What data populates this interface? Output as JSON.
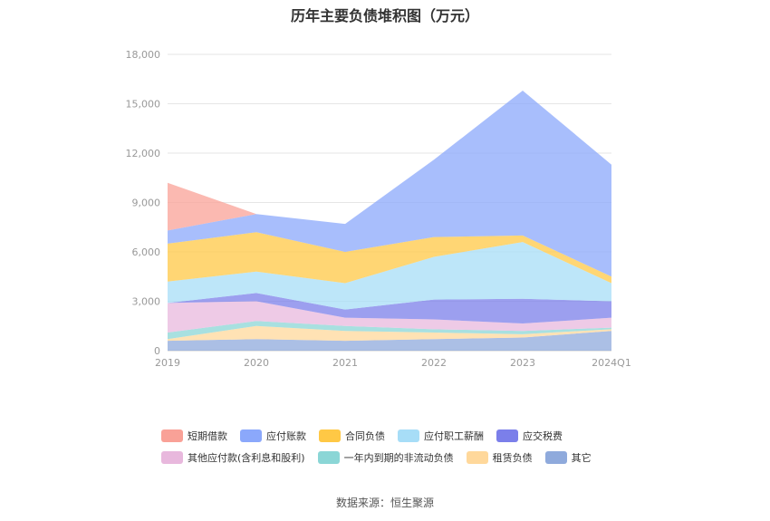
{
  "chart_data": {
    "type": "area",
    "stacked": true,
    "title": "历年主要负债堆积图（万元）",
    "x": [
      "2019",
      "2020",
      "2021",
      "2022",
      "2023",
      "2024Q1"
    ],
    "ylim": [
      0,
      18000
    ],
    "yticks": [
      0,
      3000,
      6000,
      9000,
      12000,
      15000,
      18000
    ],
    "ytick_labels": [
      "0",
      "3,000",
      "6,000",
      "9,000",
      "12,000",
      "15,000",
      "18,000"
    ],
    "grid": true,
    "legend_position": "bottom",
    "series": [
      {
        "name": "其它",
        "color": "#8FAADC",
        "values": [
          600,
          700,
          600,
          700,
          800,
          1200
        ]
      },
      {
        "name": "租赁负债",
        "color": "#FFD89B",
        "values": [
          100,
          800,
          600,
          400,
          200,
          100
        ]
      },
      {
        "name": "一年内到期的非流动负债",
        "color": "#8BD6D6",
        "values": [
          400,
          300,
          300,
          200,
          200,
          100
        ]
      },
      {
        "name": "其他应付款(含利息和股利)",
        "color": "#E8B8DD",
        "values": [
          1800,
          1200,
          500,
          600,
          450,
          600
        ]
      },
      {
        "name": "应交税费",
        "color": "#7B7FEA",
        "values": [
          0,
          500,
          500,
          1200,
          1500,
          1000
        ]
      },
      {
        "name": "应付职工薪酬",
        "color": "#A7DDF7",
        "values": [
          1300,
          1300,
          1600,
          2600,
          3450,
          1100
        ]
      },
      {
        "name": "合同负债",
        "color": "#FFC845",
        "values": [
          2300,
          2400,
          1900,
          1200,
          400,
          400
        ]
      },
      {
        "name": "应付账款",
        "color": "#8BA8FB",
        "values": [
          800,
          1100,
          1700,
          4700,
          8800,
          6800
        ]
      },
      {
        "name": "短期借款",
        "color": "#F9A197",
        "values": [
          2900,
          0,
          0,
          0,
          0,
          0
        ]
      }
    ]
  },
  "legend": {
    "row1": [
      {
        "label": "短期借款",
        "color": "#F9A197"
      },
      {
        "label": "应付账款",
        "color": "#8BA8FB"
      },
      {
        "label": "合同负债",
        "color": "#FFC845"
      },
      {
        "label": "应付职工薪酬",
        "color": "#A7DDF7"
      },
      {
        "label": "应交税费",
        "color": "#7B7FEA"
      }
    ],
    "row2": [
      {
        "label": "其他应付款(含利息和股利)",
        "color": "#E8B8DD"
      },
      {
        "label": "一年内到期的非流动负债",
        "color": "#8BD6D6"
      },
      {
        "label": "租赁负债",
        "color": "#FFD89B"
      },
      {
        "label": "其它",
        "color": "#8FAADC"
      }
    ]
  },
  "source": "数据来源：恒生聚源"
}
